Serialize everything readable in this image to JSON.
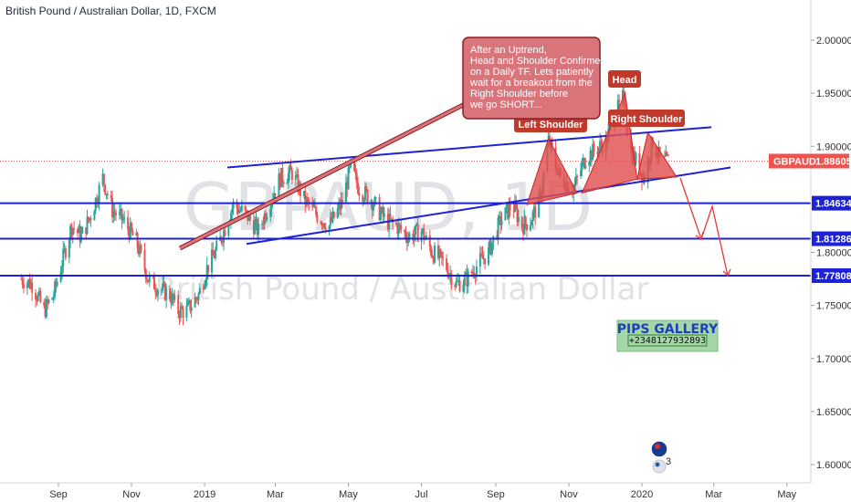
{
  "header": {
    "title": "British Pound / Australian Dollar, 1D, FXCM"
  },
  "watermark": {
    "symbol": "GBPAUD, 1D",
    "name": "British Pound / Australian Dollar"
  },
  "chart_data": {
    "type": "candlestick",
    "symbol": "GBPAUD",
    "interval": "1D",
    "source": "FXCM",
    "title": "British Pound / Australian Dollar, 1D, FXCM",
    "x_ticks": [
      "Sep",
      "Nov",
      "2019",
      "Mar",
      "May",
      "Jul",
      "Sep",
      "Nov",
      "2020",
      "Mar",
      "May"
    ],
    "y_ticks": [
      "2.00000",
      "1.95000",
      "1.90000",
      "1.80000",
      "1.75000",
      "1.70000",
      "1.65000",
      "1.60000"
    ],
    "ylim": [
      1.593,
      2.045
    ],
    "current_price": {
      "label": "GBPAUD",
      "value": "1.88605",
      "color": "#ef5350"
    },
    "horizontal_levels": [
      {
        "value": "1.84634",
        "color": "#1e22d6"
      },
      {
        "value": "1.81286",
        "color": "#1e22d6"
      },
      {
        "value": "1.77808",
        "color": "#1e22d6"
      }
    ],
    "price_path": [
      [
        "2018-08-01",
        1.775
      ],
      [
        "2018-08-10",
        1.77
      ],
      [
        "2018-08-20",
        1.745
      ],
      [
        "2018-08-28",
        1.76
      ],
      [
        "2018-09-05",
        1.795
      ],
      [
        "2018-09-12",
        1.825
      ],
      [
        "2018-09-20",
        1.815
      ],
      [
        "2018-09-28",
        1.835
      ],
      [
        "2018-10-08",
        1.87
      ],
      [
        "2018-10-16",
        1.84
      ],
      [
        "2018-10-25",
        1.83
      ],
      [
        "2018-11-05",
        1.81
      ],
      [
        "2018-11-15",
        1.775
      ],
      [
        "2018-11-25",
        1.765
      ],
      [
        "2018-12-03",
        1.76
      ],
      [
        "2018-12-10",
        1.745
      ],
      [
        "2018-12-17",
        1.745
      ],
      [
        "2018-12-27",
        1.76
      ],
      [
        "2019-01-03",
        1.785
      ],
      [
        "2019-01-10",
        1.8
      ],
      [
        "2019-01-17",
        1.82
      ],
      [
        "2019-01-25",
        1.845
      ],
      [
        "2019-02-05",
        1.835
      ],
      [
        "2019-02-15",
        1.82
      ],
      [
        "2019-02-25",
        1.85
      ],
      [
        "2019-03-05",
        1.87
      ],
      [
        "2019-03-15",
        1.875
      ],
      [
        "2019-03-25",
        1.85
      ],
      [
        "2019-04-05",
        1.835
      ],
      [
        "2019-04-15",
        1.825
      ],
      [
        "2019-04-25",
        1.845
      ],
      [
        "2019-05-03",
        1.88
      ],
      [
        "2019-05-10",
        1.86
      ],
      [
        "2019-05-20",
        1.85
      ],
      [
        "2019-06-01",
        1.83
      ],
      [
        "2019-06-10",
        1.825
      ],
      [
        "2019-06-20",
        1.815
      ],
      [
        "2019-07-01",
        1.82
      ],
      [
        "2019-07-10",
        1.8
      ],
      [
        "2019-07-20",
        1.79
      ],
      [
        "2019-07-30",
        1.77
      ],
      [
        "2019-08-08",
        1.775
      ],
      [
        "2019-08-18",
        1.79
      ],
      [
        "2019-08-26",
        1.8
      ],
      [
        "2019-09-05",
        1.83
      ],
      [
        "2019-09-15",
        1.845
      ],
      [
        "2019-09-23",
        1.825
      ],
      [
        "2019-09-30",
        1.83
      ],
      [
        "2019-10-08",
        1.85
      ],
      [
        "2019-10-15",
        1.905
      ],
      [
        "2019-10-25",
        1.87
      ],
      [
        "2019-11-05",
        1.86
      ],
      [
        "2019-11-15",
        1.89
      ],
      [
        "2019-11-22",
        1.895
      ],
      [
        "2019-12-02",
        1.905
      ],
      [
        "2019-12-10",
        1.93
      ],
      [
        "2019-12-16",
        1.945
      ],
      [
        "2019-12-23",
        1.895
      ],
      [
        "2020-01-03",
        1.87
      ],
      [
        "2020-01-10",
        1.905
      ],
      [
        "2020-01-17",
        1.885
      ],
      [
        "2020-01-23",
        1.886
      ]
    ],
    "annotations": {
      "callout": "After an Uptrend,\nHead and Shoulder Confirmed\non a Daily TF. Lets patiently\nwait for a breakout from the\nRight Shoulder before\nwe go SHORT...",
      "left_shoulder": "Left Shoulder",
      "head": "Head",
      "right_shoulder": "Right Shoulder"
    },
    "colors": {
      "up": "#26a69a",
      "down": "#ef5350",
      "trendline": "#1e22d6",
      "callout_fill": "#d9757a",
      "tag_fill": "#c0392b",
      "pattern_fill": "#e0514f",
      "projection": "#e53935"
    }
  },
  "branding": {
    "pips_title": "PIPS GALLERY",
    "pips_phone": "+2348127932893",
    "badge_count": "3",
    "badge_bg": "#a5d6a7"
  }
}
